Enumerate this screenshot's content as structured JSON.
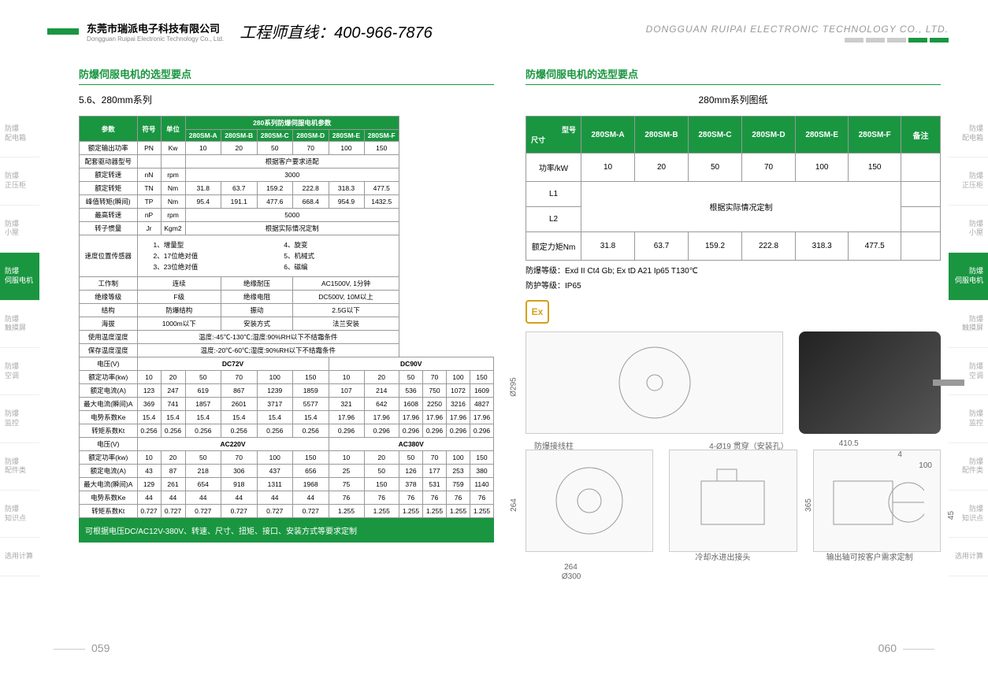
{
  "header": {
    "company_cn": "东莞市瑞派电子科技有限公司",
    "company_en": "Dongguan Ruipai Electronic Technology Co., Ltd.",
    "hotline": "工程师直线：400-966-7876",
    "header_en": "DONGGUAN RUIPAI ELECTRONIC TECHNOLOGY CO., LTD."
  },
  "nav": [
    {
      "l1": "防爆",
      "l2": "配电箱"
    },
    {
      "l1": "防爆",
      "l2": "正压柜"
    },
    {
      "l1": "防爆",
      "l2": "小屋"
    },
    {
      "l1": "防爆",
      "l2": "伺服电机",
      "active": true
    },
    {
      "l1": "防爆",
      "l2": "触摸屏"
    },
    {
      "l1": "防爆",
      "l2": "空调"
    },
    {
      "l1": "防爆",
      "l2": "监控"
    },
    {
      "l1": "防爆",
      "l2": "配件类"
    },
    {
      "l1": "防爆",
      "l2": "知识点"
    },
    {
      "l1": "选用计算",
      "l2": ""
    }
  ],
  "left": {
    "section_title": "防爆伺服电机的选型要点",
    "subtitle": "5.6、280mm系列",
    "main_header": "280系列防爆伺服电机参数",
    "param_col": "参数",
    "symbol_col": "符号",
    "unit_col": "单位",
    "models": [
      "280SM-A",
      "280SM-B",
      "280SM-C",
      "280SM-D",
      "280SM-E",
      "280SM-F"
    ],
    "rows1": [
      {
        "p": "额定输出功率",
        "s": "PN",
        "u": "Kw",
        "v": [
          "10",
          "20",
          "50",
          "70",
          "100",
          "150"
        ]
      },
      {
        "p": "配套驱动器型号",
        "s": "",
        "u": "",
        "span": "根据客户要求适配"
      },
      {
        "p": "额定转速",
        "s": "nN",
        "u": "rpm",
        "span": "3000"
      },
      {
        "p": "额定转矩",
        "s": "TN",
        "u": "Nm",
        "v": [
          "31.8",
          "63.7",
          "159.2",
          "222.8",
          "318.3",
          "477.5"
        ]
      },
      {
        "p": "峰值转矩(瞬间)",
        "s": "TP",
        "u": "Nm",
        "v": [
          "95.4",
          "191.1",
          "477.6",
          "668.4",
          "954.9",
          "1432.5"
        ]
      },
      {
        "p": "最高转速",
        "s": "nP",
        "u": "rpm",
        "span": "5000"
      },
      {
        "p": "转子惯量",
        "s": "Jr",
        "u": "Kgm2",
        "span": "根据实际情况定制"
      }
    ],
    "sensor_label": "速度位置传感器",
    "sensor_opts": [
      "1、增量型",
      "2、17位绝对值",
      "3、23位绝对值",
      "4、旋变",
      "5、机械式",
      "6、磁编"
    ],
    "rows2": [
      [
        "工作制",
        "连续",
        "绝缘耐压",
        "AC1500V, 1分钟"
      ],
      [
        "绝缘等级",
        "F级",
        "绝缘电阻",
        "DC500V, 10M以上"
      ],
      [
        "结构",
        "防爆结构",
        "振动",
        "2.5G以下"
      ],
      [
        "海拔",
        "1000m以下",
        "安装方式",
        "法兰安装"
      ],
      [
        "使用温度湿度",
        "温度:-45℃-130℃;湿度:90%RH以下不结霜条件"
      ],
      [
        "保存温度湿度",
        "温度:-20℃-60℃;湿度:90%RH以下不结霜条件"
      ]
    ],
    "volt_groups": [
      "DC72V",
      "DC90V",
      "AC220V",
      "AC380V"
    ],
    "elec_rows": [
      {
        "label": "电压(V)",
        "group": 0
      },
      {
        "label": "额定功率(kw)",
        "v": [
          "10",
          "20",
          "50",
          "70",
          "100",
          "150",
          "10",
          "20",
          "50",
          "70",
          "100",
          "150"
        ]
      },
      {
        "label": "额定电流(A)",
        "v": [
          "123",
          "247",
          "619",
          "867",
          "1239",
          "1859",
          "107",
          "214",
          "536",
          "750",
          "1072",
          "1609"
        ]
      },
      {
        "label": "最大电流(瞬间)A",
        "v": [
          "369",
          "741",
          "1857",
          "2601",
          "3717",
          "5577",
          "321",
          "642",
          "1608",
          "2250",
          "3216",
          "4827"
        ]
      },
      {
        "label": "电势系数Ke",
        "v": [
          "15.4",
          "15.4",
          "15.4",
          "15.4",
          "15.4",
          "15.4",
          "17.96",
          "17.96",
          "17.96",
          "17.96",
          "17.96",
          "17.96"
        ]
      },
      {
        "label": "转矩系数Kt",
        "v": [
          "0.256",
          "0.256",
          "0.256",
          "0.256",
          "0.256",
          "0.256",
          "0.296",
          "0.296",
          "0.296",
          "0.296",
          "0.296",
          "0.296"
        ]
      },
      {
        "label": "电压(V)",
        "group": 1
      },
      {
        "label": "额定功率(kw)",
        "v": [
          "10",
          "20",
          "50",
          "70",
          "100",
          "150",
          "10",
          "20",
          "50",
          "70",
          "100",
          "150"
        ]
      },
      {
        "label": "额定电流(A)",
        "v": [
          "43",
          "87",
          "218",
          "306",
          "437",
          "656",
          "25",
          "50",
          "126",
          "177",
          "253",
          "380"
        ]
      },
      {
        "label": "最大电流(瞬间)A",
        "v": [
          "129",
          "261",
          "654",
          "918",
          "1311",
          "1968",
          "75",
          "150",
          "378",
          "531",
          "759",
          "1140"
        ]
      },
      {
        "label": "电势系数Ke",
        "v": [
          "44",
          "44",
          "44",
          "44",
          "44",
          "44",
          "76",
          "76",
          "76",
          "76",
          "76",
          "76"
        ]
      },
      {
        "label": "转矩系数Kt",
        "v": [
          "0.727",
          "0.727",
          "0.727",
          "0.727",
          "0.727",
          "0.727",
          "1.255",
          "1.255",
          "1.255",
          "1.255",
          "1.255",
          "1.255"
        ]
      }
    ],
    "footer": "可根据电压DC/AC12V-380V、转速、尺寸、扭矩、接口、安装方式等要求定制"
  },
  "right": {
    "section_title": "防爆伺服电机的选型要点",
    "subtitle": "280mm系列图纸",
    "size_label": "尺寸",
    "model_label": "型号",
    "remark_label": "备注",
    "models": [
      "280SM-A",
      "280SM-B",
      "280SM-C",
      "280SM-D",
      "280SM-E",
      "280SM-F"
    ],
    "rows": [
      {
        "p": "功率/kW",
        "v": [
          "10",
          "20",
          "50",
          "70",
          "100",
          "150"
        ],
        "r": ""
      },
      {
        "p": "L1",
        "span": "根据实际情况定制",
        "r": ""
      },
      {
        "p": "L2",
        "span_cont": true,
        "r": ""
      },
      {
        "p": "额定力矩Nm",
        "v": [
          "31.8",
          "63.7",
          "159.2",
          "222.8",
          "318.3",
          "477.5"
        ],
        "r": ""
      }
    ],
    "spec1": "防爆等级：Exd II Ct4 Gb; Ex tD A21 Ip65 T130℃",
    "spec2": "防护等级：IP65",
    "ex_text": "Ex",
    "labels": {
      "terminal": "防爆接线柱",
      "hole": "4-Ø19 贯穿（安装孔）",
      "dim_295": "Ø295",
      "dim_264": "264",
      "dim_300": "Ø300",
      "dim_365": "365",
      "dim_410": "410.5",
      "dim_4": "4",
      "dim_100": "100",
      "dim_45": "45",
      "cooling": "冷却水进出接头",
      "shaft": "输出轴可按客户需求定制"
    }
  },
  "page_left_num": "059",
  "page_right_num": "060",
  "colors": {
    "primary": "#1a9641",
    "border": "#999999"
  }
}
